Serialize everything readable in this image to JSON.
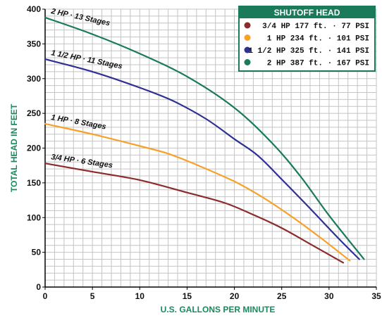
{
  "chart_data": {
    "type": "line",
    "xlabel": "U.S. GALLONS PER MINUTE",
    "ylabel": "TOTAL HEAD IN FEET",
    "xlim": [
      0,
      35
    ],
    "ylim": [
      0,
      400
    ],
    "x_ticks": [
      "0",
      "5",
      "10",
      "15",
      "20",
      "25",
      "30",
      "35"
    ],
    "y_ticks": [
      "0",
      "50",
      "100",
      "150",
      "200",
      "250",
      "300",
      "350",
      "400"
    ],
    "grid": true,
    "legend_position": "top-right",
    "legend_title": "SHUTOFF HEAD",
    "series": [
      {
        "name": "2 HP · 13 Stages",
        "legend_text": "2 HP  387 ft. · 167 PSI",
        "color": "#1a7a5a",
        "x": [
          0,
          5,
          10,
          15,
          20,
          24,
          27,
          30,
          33.7
        ],
        "y": [
          388,
          364,
          336,
          303,
          258,
          207,
          159,
          103,
          40
        ]
      },
      {
        "name": "1 1/2 HP · 11 Stages",
        "legend_text": "1 1/2 HP  325 ft. · 141 PSI",
        "color": "#2e3192",
        "x": [
          0,
          5,
          10,
          13.5,
          17,
          20,
          22.5,
          25,
          28,
          31,
          33.2
        ],
        "y": [
          328,
          310,
          287,
          268,
          242,
          213,
          189,
          155,
          113,
          70,
          40
        ]
      },
      {
        "name": "1 HP · 8 Stages",
        "legend_text": "1 HP  234 ft. · 101 PSI",
        "color": "#f7a12b",
        "x": [
          0,
          5,
          10,
          13,
          16,
          20,
          23,
          26,
          29,
          32.2
        ],
        "y": [
          235,
          220,
          203,
          192,
          176,
          152,
          129,
          102,
          72,
          38
        ]
      },
      {
        "name": "3/4 HP · 6 Stages",
        "legend_text": "3/4 HP  177 ft. ·  77 PSI",
        "color": "#8b2b2b",
        "x": [
          0,
          5,
          10,
          15,
          19,
          22,
          25,
          28,
          31.5
        ],
        "y": [
          178,
          166,
          154,
          136,
          121,
          104,
          85,
          62,
          35
        ]
      }
    ]
  }
}
